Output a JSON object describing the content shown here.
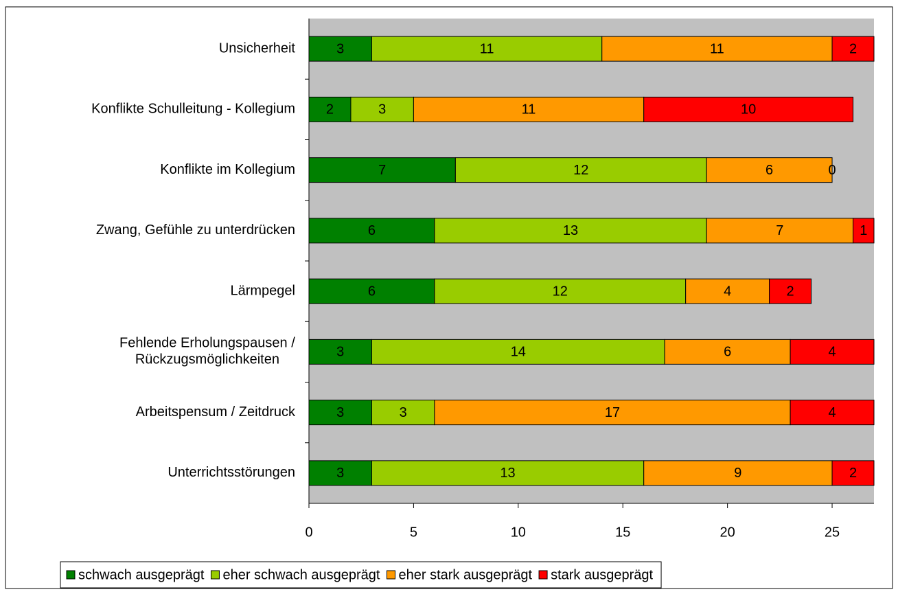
{
  "chart_data": {
    "type": "stacked_barh",
    "categories": [
      "Unsicherheit",
      "Konflikte Schulleitung - Kollegium",
      "Konflikte im Kollegium",
      "Zwang, Gefühle zu unterdrücken",
      "Lärmpegel",
      "Fehlende Erholungspausen / Rückzugsmöglichkeiten",
      "Arbeitspensum / Zeitdruck",
      "Unterrichtsstörungen"
    ],
    "series": [
      {
        "name": "schwach ausgeprägt",
        "color": "#008000",
        "values": [
          3,
          2,
          7,
          6,
          6,
          3,
          3,
          3
        ]
      },
      {
        "name": "eher schwach ausgeprägt",
        "color": "#99cc00",
        "values": [
          11,
          3,
          12,
          13,
          12,
          14,
          3,
          13
        ]
      },
      {
        "name": "eher stark ausgeprägt",
        "color": "#ff9900",
        "values": [
          11,
          11,
          6,
          7,
          4,
          6,
          17,
          9
        ]
      },
      {
        "name": "stark ausgeprägt",
        "color": "#ff0000",
        "values": [
          2,
          10,
          0,
          1,
          2,
          4,
          4,
          2
        ]
      }
    ],
    "xlim": [
      0,
      27
    ],
    "xticks": [
      0,
      5,
      10,
      15,
      20,
      25
    ],
    "plot_background": "#c0c0c0",
    "legend": "bottom"
  }
}
